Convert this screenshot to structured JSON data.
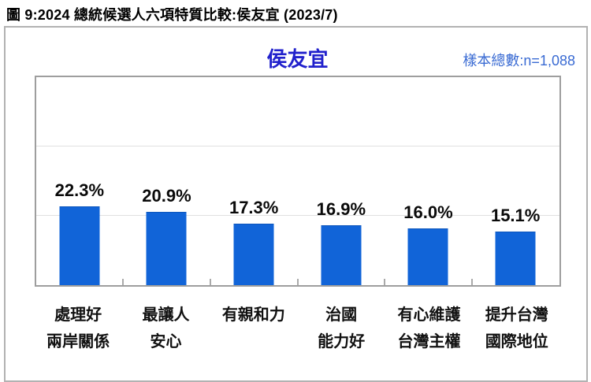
{
  "header": {
    "title": "圖 9:2024 總統候選人六項特質比較:侯友宜 (2023/7)"
  },
  "chart": {
    "title": "侯友宜",
    "sample_note": "樣本總數:n=1,088"
  },
  "chart_data": {
    "type": "bar",
    "title": "侯友宜",
    "categories": [
      "處理好 兩岸關係",
      "最讓人 安心",
      "有親和力",
      "治國 能力好",
      "有心維護 台灣主權",
      "提升台灣 國際地位"
    ],
    "categories_lines": [
      [
        "處理好",
        "兩岸關係"
      ],
      [
        "最讓人",
        "安心"
      ],
      [
        "有親和力",
        ""
      ],
      [
        "治國",
        "能力好"
      ],
      [
        "有心維護",
        "台灣主權"
      ],
      [
        "提升台灣",
        "國際地位"
      ]
    ],
    "values": [
      22.3,
      20.9,
      17.3,
      16.9,
      16.0,
      15.1
    ],
    "value_labels": [
      "22.3%",
      "20.9%",
      "17.3%",
      "16.9%",
      "16.0%",
      "15.1%"
    ],
    "xlabel": "",
    "ylabel": "",
    "ylim": [
      0,
      60
    ],
    "gridlines": [
      20,
      40
    ],
    "grid": true,
    "legend": false,
    "bar_color": "#1164d8",
    "title_color": "#2121cc",
    "note_color": "#3a6bd3"
  }
}
